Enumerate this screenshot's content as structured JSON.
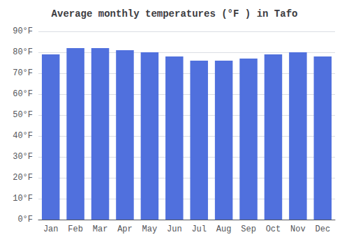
{
  "chart_data": {
    "type": "bar",
    "title": "Average monthly temperatures (°F ) in Tafo",
    "categories": [
      "Jan",
      "Feb",
      "Mar",
      "Apr",
      "May",
      "Jun",
      "Jul",
      "Aug",
      "Sep",
      "Oct",
      "Nov",
      "Dec"
    ],
    "values": [
      79,
      82,
      82,
      81,
      80,
      78,
      76,
      76,
      77,
      79,
      80,
      78
    ],
    "ylim": [
      0,
      90
    ],
    "yticks": [
      {
        "value": 0,
        "label": "0°F"
      },
      {
        "value": 10,
        "label": "10°F"
      },
      {
        "value": 20,
        "label": "20°F"
      },
      {
        "value": 30,
        "label": "30°F"
      },
      {
        "value": 40,
        "label": "40°F"
      },
      {
        "value": 50,
        "label": "50°F"
      },
      {
        "value": 60,
        "label": "60°F"
      },
      {
        "value": 70,
        "label": "70°F"
      },
      {
        "value": 80,
        "label": "80°F"
      },
      {
        "value": 90,
        "label": "90°F"
      }
    ],
    "grid": true
  }
}
